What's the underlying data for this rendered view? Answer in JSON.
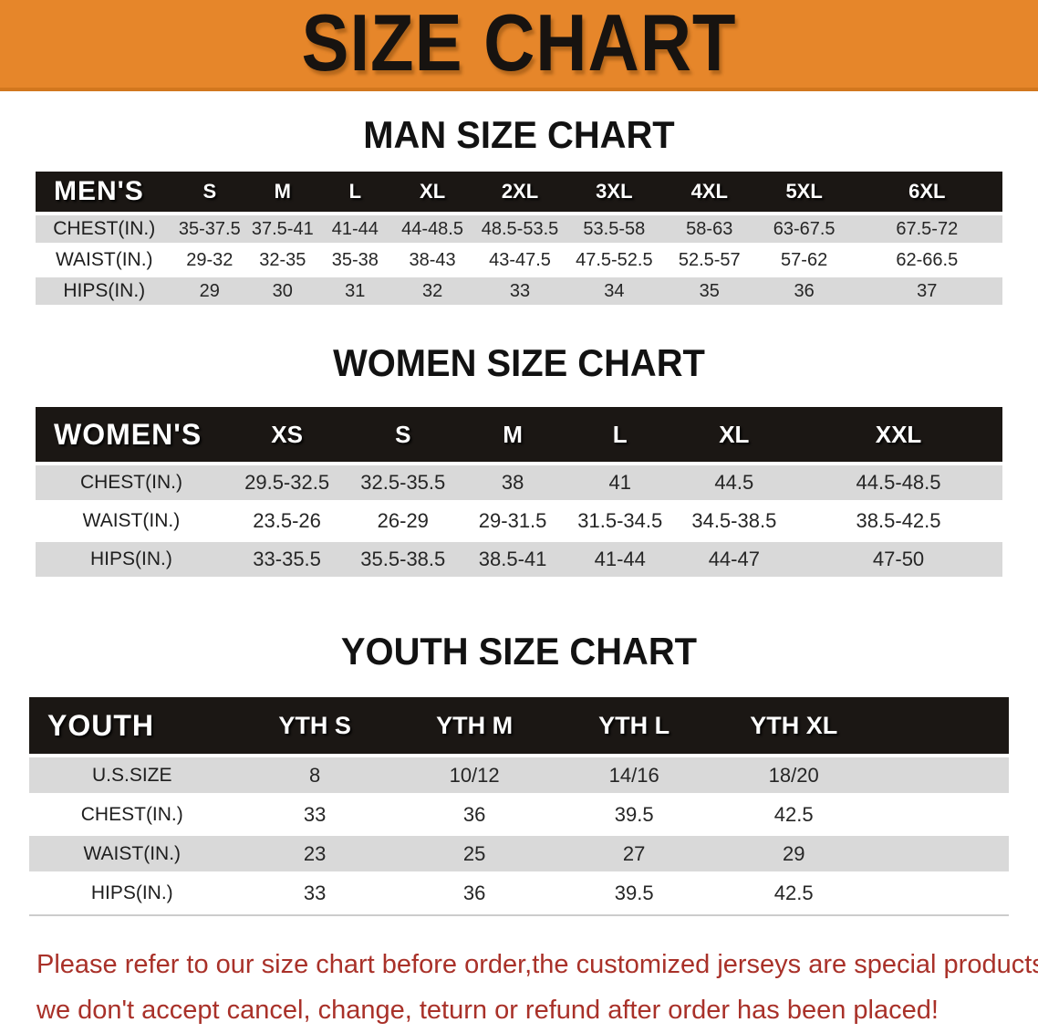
{
  "banner": {
    "title": "SIZE CHART"
  },
  "colors": {
    "banner_bg": "#E6862A",
    "banner_border": "#D2771E",
    "banner_text": "#171310",
    "header_bar_bg": "#1B1714",
    "header_bar_text": "#FFFFFF",
    "row_stripe": "#D9D9D9",
    "row_text": "#262626",
    "note_text": "#A93129"
  },
  "men": {
    "heading": "MAN SIZE CHART",
    "label": "MEN'S",
    "sizes": [
      "S",
      "M",
      "L",
      "XL",
      "2XL",
      "3XL",
      "4XL",
      "5XL",
      "6XL"
    ],
    "rows": [
      {
        "label": "CHEST(IN.)",
        "values": [
          "35-37.5",
          "37.5-41",
          "41-44",
          "44-48.5",
          "48.5-53.5",
          "53.5-58",
          "58-63",
          "63-67.5",
          "67.5-72"
        ]
      },
      {
        "label": "WAIST(IN.)",
        "values": [
          "29-32",
          "32-35",
          "35-38",
          "38-43",
          "43-47.5",
          "47.5-52.5",
          "52.5-57",
          "57-62",
          "62-66.5"
        ]
      },
      {
        "label": "HIPS(IN.)",
        "values": [
          "29",
          "30",
          "31",
          "32",
          "33",
          "34",
          "35",
          "36",
          "37"
        ]
      }
    ]
  },
  "women": {
    "heading": "WOMEN SIZE CHART",
    "label": "WOMEN'S",
    "sizes": [
      "XS",
      "S",
      "M",
      "L",
      "XL",
      "XXL"
    ],
    "rows": [
      {
        "label": "CHEST(IN.)",
        "values": [
          "29.5-32.5",
          "32.5-35.5",
          "38",
          "41",
          "44.5",
          "44.5-48.5"
        ]
      },
      {
        "label": "WAIST(IN.)",
        "values": [
          "23.5-26",
          "26-29",
          "29-31.5",
          "31.5-34.5",
          "34.5-38.5",
          "38.5-42.5"
        ]
      },
      {
        "label": "HIPS(IN.)",
        "values": [
          "33-35.5",
          "35.5-38.5",
          "38.5-41",
          "41-44",
          "44-47",
          "47-50"
        ]
      }
    ]
  },
  "youth": {
    "heading": "YOUTH SIZE CHART",
    "label": "YOUTH",
    "sizes": [
      "YTH S",
      "YTH M",
      "YTH L",
      "YTH XL"
    ],
    "rows": [
      {
        "label": "U.S.SIZE",
        "values": [
          "8",
          "10/12",
          "14/16",
          "18/20"
        ]
      },
      {
        "label": "CHEST(IN.)",
        "values": [
          "33",
          "36",
          "39.5",
          "42.5"
        ]
      },
      {
        "label": "WAIST(IN.)",
        "values": [
          "23",
          "25",
          "27",
          "29"
        ]
      },
      {
        "label": "HIPS(IN.)",
        "values": [
          "33",
          "36",
          "39.5",
          "42.5"
        ]
      }
    ]
  },
  "note": {
    "line1": "Please refer to our size chart before order,the customized jerseys are special products,",
    "line2": "we don't accept cancel, change, teturn or refund after order has been placed!"
  }
}
